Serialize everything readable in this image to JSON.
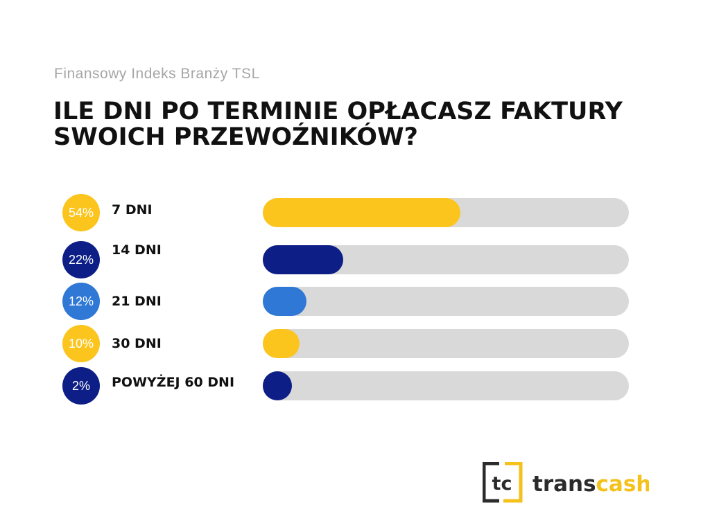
{
  "subtitle": "Finansowy Indeks Branży TSL",
  "chart_data": {
    "type": "bar",
    "title": "ILE DNI PO TERMINIE OPŁACASZ FAKTURY SWOICH PRZEWOŹNIKÓW?",
    "categories": [
      "7 DNI",
      "14 DNI",
      "21 DNI",
      "30 DNI",
      "POWYŻEJ 60 DNI"
    ],
    "values": [
      54,
      22,
      12,
      10,
      2
    ],
    "value_labels": [
      "54%",
      "22%",
      "12%",
      "10%",
      "2%"
    ],
    "colors": [
      "#fcc51e",
      "#0d1f86",
      "#2f78d6",
      "#fcc51e",
      "#0d1f86"
    ],
    "track_color": "#d9d9d9",
    "xlim": [
      0,
      100
    ],
    "orientation": "horizontal"
  },
  "logo": {
    "mark": "tc",
    "text_dark": "trans",
    "text_accent": "cash",
    "dark": "#2b2b2b",
    "accent": "#f5c11b"
  }
}
